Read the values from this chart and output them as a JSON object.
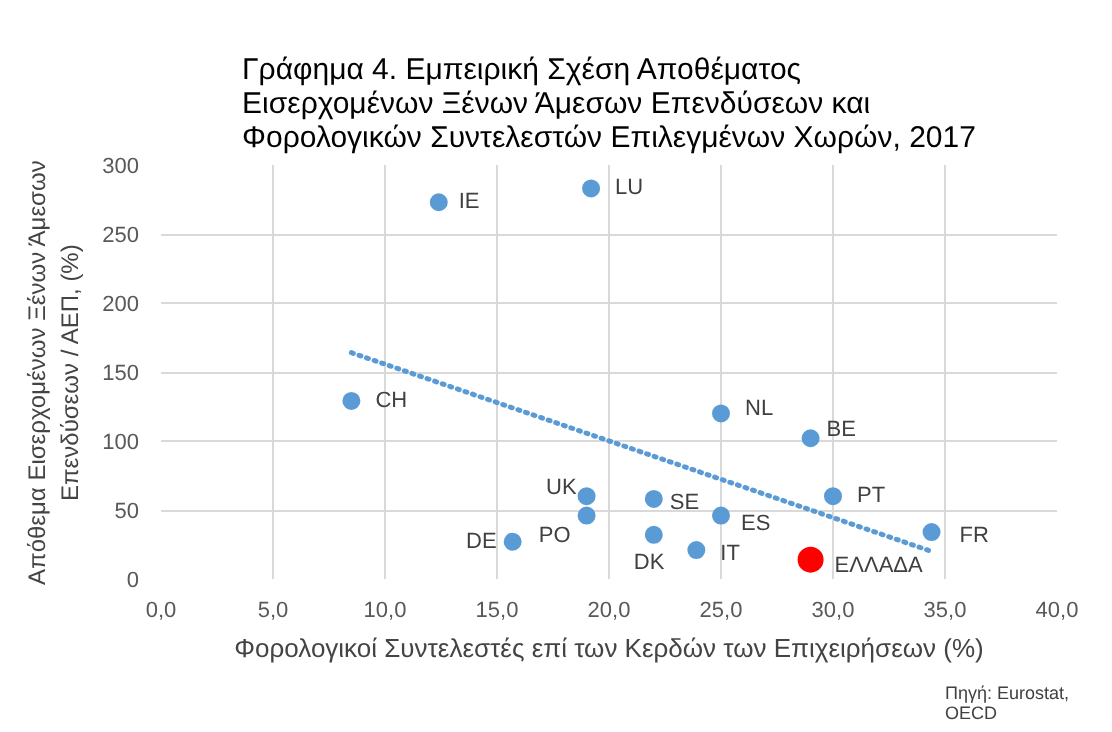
{
  "chart_data": {
    "type": "scatter",
    "title": "Γράφημα  4. Εμπειρική Σχέση Αποθέματος\nΕισερχομένων Ξένων Άμεσων Επενδύσεων και\nΦορολογικών Συντελεστών Επιλεγμένων Χωρών, 2017",
    "xlabel": "Φορολογικοί Συντελεστές επί των Κερδών των Επιχειρήσεων (%)",
    "ylabel": "Απόθεμα Εισερχομένων Ξένων Άμεσων\nΕπενδύσεων / ΑΕΠ, (%)",
    "xlim": [
      0,
      40
    ],
    "ylim": [
      0,
      300
    ],
    "xticks": [
      {
        "value": 0,
        "label": "0,0"
      },
      {
        "value": 5,
        "label": "5,0"
      },
      {
        "value": 10,
        "label": "10,0"
      },
      {
        "value": 15,
        "label": "15,0"
      },
      {
        "value": 20,
        "label": "20,0"
      },
      {
        "value": 25,
        "label": "25,0"
      },
      {
        "value": 30,
        "label": "30,0"
      },
      {
        "value": 35,
        "label": "35,0"
      },
      {
        "value": 40,
        "label": "40,0"
      }
    ],
    "yticks": [
      0,
      50,
      100,
      150,
      200,
      250,
      300
    ],
    "grid": true,
    "marker": "circle",
    "series": [
      {
        "color": "#5b9bd5",
        "x": [
          12.4,
          8.5,
          19.0,
          19.0,
          15.7,
          19.2,
          25.0,
          29.0,
          22.0,
          30.0,
          25.0,
          22.0,
          23.9,
          34.4
        ],
        "values": [
          273,
          129,
          60,
          46,
          27,
          283,
          120,
          102,
          58,
          60,
          46,
          32,
          21,
          34
        ]
      },
      {
        "color": "#ff0000",
        "x": [
          29.0
        ],
        "values": [
          14
        ]
      },
      {
        "type": "line",
        "line_style": "dotted",
        "marker": "none",
        "color": "#5b9bd5",
        "x": [
          8.5,
          34.4
        ],
        "values": [
          164,
          20
        ]
      }
    ],
    "annotations": [
      {
        "text": "IE",
        "x": 12.4,
        "y": 273
      },
      {
        "text": "CH",
        "x": 8.5,
        "y": 129
      },
      {
        "text": "UK",
        "x": 19.0,
        "y": 60
      },
      {
        "text": "PO",
        "x": 19.0,
        "y": 46
      },
      {
        "text": "DE",
        "x": 15.7,
        "y": 27
      },
      {
        "text": "LU",
        "x": 19.2,
        "y": 283
      },
      {
        "text": "NL",
        "x": 25.0,
        "y": 120
      },
      {
        "text": "BE",
        "x": 29.0,
        "y": 102
      },
      {
        "text": "SE",
        "x": 22.0,
        "y": 58
      },
      {
        "text": "PT",
        "x": 30.0,
        "y": 60
      },
      {
        "text": "ES",
        "x": 25.0,
        "y": 46
      },
      {
        "text": "DK",
        "x": 22.0,
        "y": 32
      },
      {
        "text": "IT",
        "x": 23.9,
        "y": 21
      },
      {
        "text": "FR",
        "x": 34.4,
        "y": 34
      },
      {
        "text": "ΕΛΛΑΔΑ",
        "x": 29.0,
        "y": 14
      },
      "Πηγή: Eurostat,\nOECD"
    ]
  }
}
